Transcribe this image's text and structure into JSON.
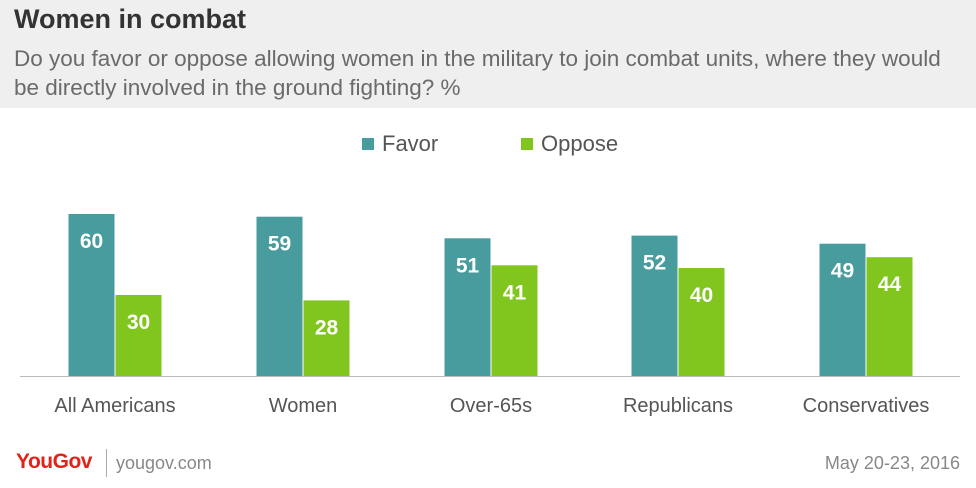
{
  "header": {
    "title": "Women in combat",
    "subtitle": "Do you favor or oppose allowing women in the military to join combat units, where they would be directly involved in the ground fighting? %"
  },
  "chart_data": {
    "type": "bar",
    "categories": [
      "All Americans",
      "Women",
      "Over-65s",
      "Republicans",
      "Conservatives"
    ],
    "series": [
      {
        "name": "Favor",
        "color": "#489c9e",
        "values": [
          60,
          59,
          51,
          52,
          49
        ]
      },
      {
        "name": "Oppose",
        "color": "#80c61e",
        "values": [
          30,
          28,
          41,
          40,
          44
        ]
      }
    ],
    "title": "",
    "xlabel": "",
    "ylabel": "",
    "ylim": [
      0,
      70
    ],
    "grid": false,
    "legend": "top-center",
    "data_labels": true
  },
  "footer": {
    "brand": "YouGov",
    "site": "yougov.com",
    "date": "May 20-23, 2016"
  }
}
